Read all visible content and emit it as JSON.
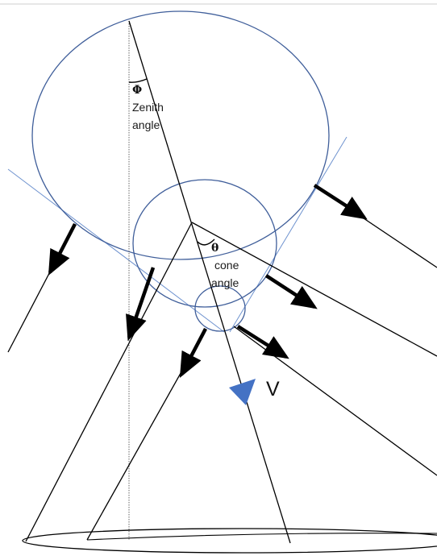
{
  "labels": {
    "zenith_symbol": "Φ",
    "zenith_word1": "Zenith",
    "zenith_word2": "angle",
    "cone_symbol": "θ",
    "cone_word1": "cone",
    "cone_word2": "angle",
    "velocity": "V"
  },
  "colors": {
    "circle_stroke": "#3f5e9a",
    "tangent_stroke": "#6f93cf",
    "velocity_arrow": "#4472c4",
    "line_stroke": "#000000"
  }
}
